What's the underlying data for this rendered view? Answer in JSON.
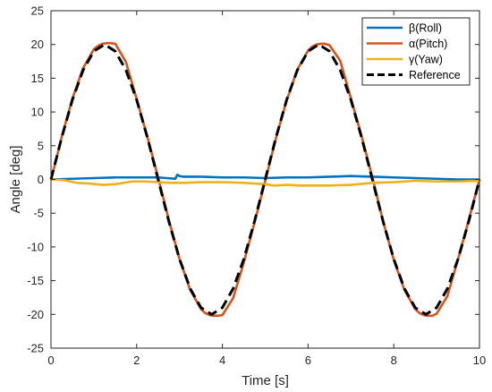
{
  "chart_data": {
    "type": "line",
    "title": "",
    "xlabel": "Time [s]",
    "ylabel": "Angle [deg]",
    "xlim": [
      0,
      10
    ],
    "ylim": [
      -25,
      25
    ],
    "xticks": [
      0,
      2,
      4,
      6,
      8,
      10
    ],
    "yticks": [
      -25,
      -20,
      -15,
      -10,
      -5,
      0,
      5,
      10,
      15,
      20,
      25
    ],
    "grid": false,
    "legend_position": "top-right",
    "series": [
      {
        "name": "β(Roll)",
        "color": "#0072BD",
        "style": "solid",
        "x": [
          0,
          0.5,
          1.0,
          1.5,
          2.0,
          2.5,
          2.9,
          2.95,
          3.0,
          3.1,
          3.5,
          4.0,
          4.5,
          5.0,
          5.5,
          6.0,
          6.5,
          7.0,
          7.5,
          8.0,
          8.5,
          9.0,
          9.5,
          10.0
        ],
        "y": [
          0.0,
          0.1,
          0.2,
          0.3,
          0.3,
          0.3,
          0.1,
          0.7,
          0.5,
          0.4,
          0.4,
          0.3,
          0.3,
          0.2,
          0.3,
          0.3,
          0.4,
          0.5,
          0.4,
          0.3,
          0.2,
          0.1,
          0.0,
          0.0
        ]
      },
      {
        "name": "α(Pitch)",
        "color": "#D95319",
        "style": "solid",
        "x": [
          0,
          0.1,
          0.25,
          0.5,
          0.75,
          1.0,
          1.1,
          1.2,
          1.3,
          1.4,
          1.5,
          1.75,
          2.0,
          2.25,
          2.5,
          2.75,
          3.0,
          3.25,
          3.5,
          3.6,
          3.7,
          3.8,
          3.9,
          4.0,
          4.25,
          4.5,
          4.75,
          5.0,
          5.25,
          5.5,
          5.75,
          6.0,
          6.1,
          6.2,
          6.3,
          6.4,
          6.5,
          6.75,
          7.0,
          7.25,
          7.5,
          7.75,
          8.0,
          8.25,
          8.5,
          8.6,
          8.7,
          8.8,
          8.9,
          9.0,
          9.25,
          9.5,
          9.75,
          10.0
        ],
        "y": [
          0.0,
          2.4,
          6.3,
          12.0,
          16.5,
          19.3,
          19.8,
          20.1,
          20.2,
          20.2,
          20.1,
          17.4,
          11.9,
          6.3,
          0.3,
          -6.0,
          -11.8,
          -16.4,
          -19.2,
          -19.8,
          -20.1,
          -20.2,
          -20.2,
          -20.1,
          -17.6,
          -12.3,
          -6.4,
          -0.2,
          6.1,
          11.7,
          16.3,
          19.1,
          19.7,
          20.0,
          20.1,
          20.1,
          19.9,
          17.6,
          12.0,
          6.4,
          0.3,
          -6.2,
          -11.9,
          -16.4,
          -19.2,
          -19.8,
          -20.1,
          -20.2,
          -20.2,
          -19.9,
          -17.3,
          -11.8,
          -6.0,
          0.0
        ]
      },
      {
        "name": "γ(Yaw)",
        "color": "#EDB120",
        "style": "solid",
        "x": [
          0,
          0.3,
          0.6,
          0.9,
          1.2,
          1.5,
          1.9,
          2.2,
          2.5,
          2.8,
          3.1,
          3.5,
          4.0,
          4.5,
          5.0,
          5.2,
          5.5,
          5.8,
          6.1,
          6.5,
          7.0,
          7.5,
          8.0,
          8.5,
          9.0,
          9.5,
          10.0
        ],
        "y": [
          0.0,
          -0.1,
          -0.5,
          -0.6,
          -0.8,
          -0.7,
          -0.3,
          -0.3,
          -0.4,
          -0.5,
          -0.5,
          -0.4,
          -0.4,
          -0.5,
          -0.7,
          -0.9,
          -0.8,
          -0.9,
          -0.9,
          -0.9,
          -0.8,
          -0.5,
          -0.4,
          -0.2,
          -0.3,
          -0.3,
          -0.2
        ]
      },
      {
        "name": "Reference",
        "color": "#000000",
        "style": "dashed",
        "x": [
          0,
          0.25,
          0.5,
          0.75,
          1.0,
          1.25,
          1.5,
          1.75,
          2.0,
          2.25,
          2.5,
          2.75,
          3.0,
          3.25,
          3.5,
          3.75,
          4.0,
          4.25,
          4.5,
          4.75,
          5.0,
          5.25,
          5.5,
          5.75,
          6.0,
          6.25,
          6.5,
          6.75,
          7.0,
          7.25,
          7.5,
          7.75,
          8.0,
          8.25,
          8.5,
          8.75,
          9.0,
          9.25,
          9.5,
          9.75,
          10.0
        ],
        "y": [
          0.0,
          6.2,
          11.8,
          16.2,
          19.0,
          20.0,
          19.0,
          16.2,
          11.8,
          6.2,
          0.0,
          -6.2,
          -11.8,
          -16.2,
          -19.0,
          -20.0,
          -19.0,
          -16.2,
          -11.8,
          -6.2,
          0.0,
          6.2,
          11.8,
          16.2,
          19.0,
          20.0,
          19.0,
          16.2,
          11.8,
          6.2,
          0.0,
          -6.2,
          -11.8,
          -16.2,
          -19.0,
          -20.0,
          -19.0,
          -16.2,
          -11.8,
          -6.2,
          0.0
        ]
      }
    ]
  }
}
